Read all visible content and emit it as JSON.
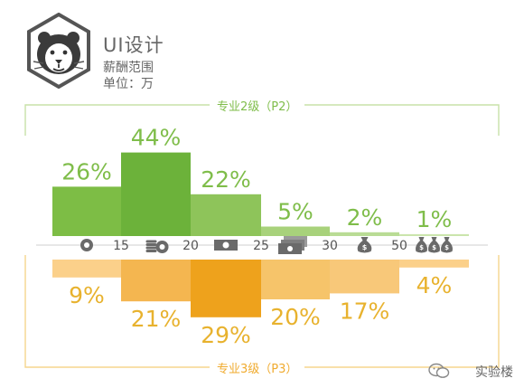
{
  "header": {
    "title": "UI设计",
    "subtitle": "薪酬范围",
    "unit": "单位：万"
  },
  "frames": {
    "top_label": "专业2级（P2）",
    "bottom_label": "专业3级（P3）"
  },
  "watermark": "实验楼",
  "colors": {
    "p2_bars": [
      "#7dbd45",
      "#6cb23a",
      "#8ec45a",
      "#a8d27b",
      "#b9dc95",
      "#cbe5ad"
    ],
    "p3_bars": [
      "#fbd08a",
      "#f4b650",
      "#eea21c",
      "#f6c46a",
      "#f8c879",
      "#fbd08a"
    ],
    "p2_text": "#7fbd4a",
    "p3_text": "#e8b22e",
    "frame_green": "#c8e2a8",
    "frame_orange": "#f6d58d",
    "icon_gray": "#6a6a6a"
  },
  "chart_data": {
    "type": "bar",
    "title": "UI设计 薪酬范围",
    "unit": "单位：万",
    "categories": [
      "<15",
      "15-20",
      "20-25",
      "25-30",
      "30-50",
      ">50"
    ],
    "x_tick_labels": [
      "15",
      "20",
      "25",
      "30",
      "50"
    ],
    "series": [
      {
        "name": "专业2级（P2）",
        "direction": "up",
        "values": [
          26,
          44,
          22,
          5,
          2,
          1
        ],
        "labels": [
          "26%",
          "44%",
          "22%",
          "5%",
          "2%",
          "1%"
        ]
      },
      {
        "name": "专业3级（P3）",
        "direction": "down",
        "values": [
          9,
          21,
          29,
          20,
          17,
          4
        ],
        "labels": [
          "9%",
          "21%",
          "29%",
          "20%",
          "17%",
          "4%"
        ]
      }
    ],
    "icons": [
      "coin-icon",
      "coin-stack-icon",
      "banknote-icon",
      "banknote-stack-icon",
      "money-bag-icon",
      "money-bags-icon"
    ],
    "ylabel": "%"
  }
}
